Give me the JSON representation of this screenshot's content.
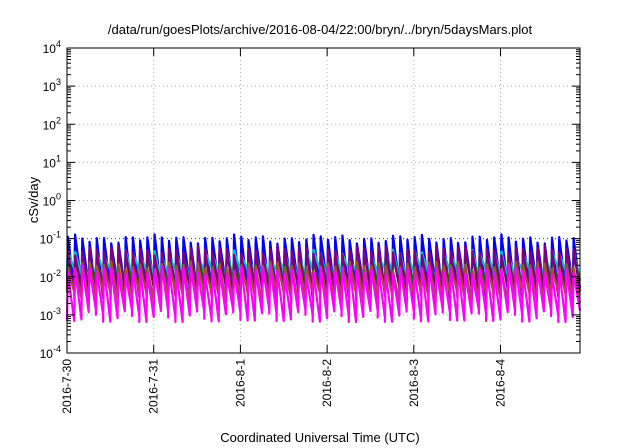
{
  "chart_data": {
    "type": "line",
    "title": "/data/run/goesPlots/archive/2016-08-04/22:00/bryn/../bryn/5daysMars.plot",
    "xlabel": "Coordinated Universal Time (UTC)",
    "ylabel": "cSv/day",
    "yscale": "log",
    "ylim": [
      0.0001,
      10000
    ],
    "xlim": [
      "2016-07-30 00:00",
      "2016-08-04 22:00"
    ],
    "x_tick_labels": [
      "2016-7-30",
      "2016-7-31",
      "2016-8-1",
      "2016-8-2",
      "2016-8-3",
      "2016-8-4"
    ],
    "y_ticks": [
      {
        "base": "10",
        "exp": "-4"
      },
      {
        "base": "10",
        "exp": "-3"
      },
      {
        "base": "10",
        "exp": "-2"
      },
      {
        "base": "10",
        "exp": "-1"
      },
      {
        "base": "10",
        "exp": "0"
      },
      {
        "base": "10",
        "exp": "1"
      },
      {
        "base": "10",
        "exp": "2"
      },
      {
        "base": "10",
        "exp": "3"
      },
      {
        "base": "10",
        "exp": "4"
      }
    ],
    "grid": true,
    "reference_line": {
      "y": 0.1,
      "color": "#ff0000",
      "style": "dotted"
    },
    "cycle_hours": 2,
    "series": [
      {
        "color": "#0000ff",
        "peak": 0.1,
        "trough": 0.005
      },
      {
        "color": "#00c8c8",
        "peak": 0.04,
        "trough": 0.012
      },
      {
        "color": "#008000",
        "peak": 0.03,
        "trough": 0.006
      },
      {
        "color": "#800080",
        "peak": 0.05,
        "trough": 0.004
      },
      {
        "color": "#a0522d",
        "peak": 0.02,
        "trough": 0.003
      },
      {
        "color": "#ff00ff",
        "peak": 0.015,
        "trough": 0.001
      }
    ]
  }
}
